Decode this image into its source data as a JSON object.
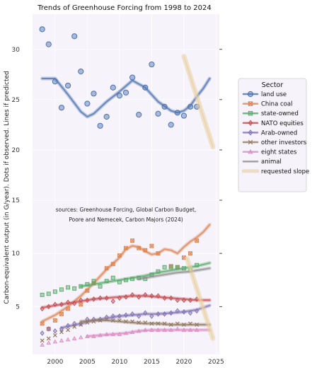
{
  "chart_data": {
    "type": "scatter",
    "title": "Trends of Greenhouse Forcing from 1998 to 2024",
    "ylabel": "Carbon-equivalent output (in G/year). Dots if observed. Lines if predicted",
    "annotation": [
      "sources: Greenhouse Forcing, Global Carbon Budget,",
      "Poore and Nemecek, Carbon Majors (2024)"
    ],
    "legend_title": "Sector",
    "legend_placement": "right",
    "xlim": [
      1996.5,
      2025.5
    ],
    "x_ticks": [
      2000,
      2005,
      2010,
      2015,
      2020,
      2025
    ],
    "top_panel": {
      "ylim": [
        15,
        33.5
      ],
      "y_ticks": [
        20,
        25,
        30
      ],
      "series": [
        {
          "name": "land use",
          "color": "#4c72b0",
          "marker": "circle",
          "x": [
            1998,
            1999,
            2000,
            2001,
            2002,
            2003,
            2004,
            2005,
            2006,
            2007,
            2008,
            2009,
            2010,
            2011,
            2012,
            2013,
            2014,
            2015,
            2016,
            2017,
            2018,
            2019,
            2020,
            2021,
            2022
          ],
          "y": [
            32.0,
            30.5,
            26.8,
            24.2,
            26.4,
            31.3,
            27.8,
            24.6,
            25.6,
            22.4,
            23.3,
            26.2,
            25.4,
            25.7,
            27.2,
            23.5,
            26.2,
            28.5,
            23.6,
            24.3,
            22.5,
            23.7,
            23.4,
            24.3,
            24.3
          ],
          "trend_x": [
            1998,
            2000,
            2002,
            2004,
            2005,
            2006,
            2008,
            2010,
            2012,
            2014,
            2016,
            2018,
            2019,
            2020,
            2021,
            2022,
            2023,
            2024
          ],
          "trend_y": [
            27.1,
            27.1,
            25.5,
            23.8,
            23.3,
            23.6,
            24.8,
            25.8,
            26.9,
            26.2,
            24.8,
            23.9,
            23.7,
            23.9,
            24.4,
            25.3,
            26.1,
            27.1
          ]
        },
        {
          "name": "requested slope",
          "color": "#e8cfa0",
          "trend_x": [
            2020,
            2024.5
          ],
          "trend_y": [
            29.3,
            20.3
          ]
        }
      ]
    },
    "bottom_panel": {
      "ylim": [
        0.5,
        15
      ],
      "y_ticks": [
        5,
        10,
        15
      ],
      "series": [
        {
          "name": "China coal",
          "color": "#dd8452",
          "marker": "square-x",
          "x": [
            1998,
            1999,
            2000,
            2001,
            2002,
            2004,
            2005,
            2006,
            2008,
            2009,
            2010,
            2011,
            2012,
            2013,
            2014,
            2015,
            2016,
            2018,
            2019,
            2020,
            2021,
            2022
          ],
          "y": [
            3.4,
            2.9,
            3.7,
            4.3,
            4.8,
            5.2,
            6.5,
            7.2,
            8.6,
            9.0,
            9.8,
            10.5,
            11.2,
            10.5,
            10.3,
            10.7,
            10.0,
            8.8,
            8.7,
            9.6,
            10.0,
            11.2
          ],
          "trend_x": [
            1998,
            2000,
            2002,
            2004,
            2006,
            2008,
            2010,
            2011,
            2012,
            2013,
            2014,
            2015,
            2016,
            2017,
            2018,
            2019,
            2020,
            2021,
            2022,
            2023,
            2024
          ],
          "trend_y": [
            3.6,
            4.2,
            5.0,
            6.0,
            7.2,
            8.5,
            9.6,
            10.4,
            10.7,
            10.6,
            10.2,
            9.9,
            10.0,
            10.4,
            10.3,
            10.0,
            10.6,
            11.1,
            11.5,
            12.0,
            12.7
          ]
        },
        {
          "name": "state-owned",
          "color": "#55a868",
          "marker": "square",
          "x": [
            1998,
            1999,
            2000,
            2001,
            2002,
            2003,
            2004,
            2005,
            2006,
            2007,
            2008,
            2009,
            2010,
            2011,
            2012,
            2013,
            2014,
            2015,
            2016,
            2017,
            2018,
            2019,
            2020,
            2021,
            2022
          ],
          "y": [
            6.1,
            6.2,
            6.4,
            6.6,
            6.8,
            6.7,
            6.9,
            7.1,
            7.4,
            6.9,
            7.4,
            7.7,
            7.3,
            7.5,
            7.6,
            7.7,
            7.6,
            8.0,
            8.3,
            8.7,
            8.7,
            8.7,
            8.6,
            8.4,
            8.9
          ],
          "trend_x": [
            2004,
            2006,
            2008,
            2010,
            2012,
            2014,
            2016,
            2018,
            2020,
            2022,
            2024
          ],
          "trend_y": [
            6.9,
            7.1,
            7.3,
            7.5,
            7.7,
            7.9,
            8.2,
            8.4,
            8.6,
            8.8,
            9.1
          ]
        },
        {
          "name": "NATO equities",
          "color": "#c44e52",
          "marker": "diamond",
          "x": [
            1998,
            1999,
            2000,
            2001,
            2002,
            2003,
            2004,
            2005,
            2006,
            2007,
            2008,
            2009,
            2010,
            2011,
            2012,
            2013,
            2014,
            2015,
            2016,
            2017,
            2018,
            2019,
            2020,
            2021,
            2022
          ],
          "y": [
            4.8,
            5.0,
            5.2,
            5.2,
            5.4,
            5.3,
            5.6,
            5.6,
            5.7,
            5.8,
            5.8,
            5.5,
            5.8,
            5.9,
            6.1,
            5.9,
            6.1,
            6.0,
            6.0,
            5.8,
            5.8,
            5.6,
            5.6,
            5.6,
            5.7
          ],
          "trend_x": [
            1998,
            2000,
            2002,
            2004,
            2006,
            2008,
            2010,
            2012,
            2014,
            2016,
            2018,
            2020,
            2022,
            2024
          ],
          "trend_y": [
            4.9,
            5.1,
            5.3,
            5.5,
            5.7,
            5.8,
            5.9,
            6.0,
            6.0,
            5.9,
            5.8,
            5.7,
            5.6,
            5.6
          ]
        },
        {
          "name": "Arab-owned",
          "color": "#8172b3",
          "marker": "diamond",
          "x": [
            1998,
            1999,
            2000,
            2001,
            2002,
            2003,
            2004,
            2005,
            2006,
            2007,
            2008,
            2009,
            2010,
            2011,
            2012,
            2013,
            2014,
            2015,
            2016,
            2017,
            2018,
            2019,
            2020,
            2021,
            2022
          ],
          "y": [
            2.5,
            2.9,
            2.7,
            2.9,
            3.2,
            3.4,
            3.4,
            3.8,
            3.8,
            3.8,
            4.0,
            4.1,
            4.1,
            4.2,
            4.3,
            4.1,
            4.4,
            4.1,
            4.3,
            4.3,
            4.4,
            4.6,
            4.5,
            4.4,
            4.6
          ],
          "trend_x": [
            2001,
            2004,
            2006,
            2008,
            2010,
            2012,
            2014,
            2016,
            2018,
            2020,
            2022,
            2024
          ],
          "trend_y": [
            3.0,
            3.4,
            3.7,
            3.9,
            4.1,
            4.2,
            4.3,
            4.3,
            4.4,
            4.5,
            4.7,
            5.1
          ]
        },
        {
          "name": "other investors",
          "color": "#937860",
          "marker": "x",
          "x": [
            1998,
            1999,
            2000,
            2001,
            2002,
            2003,
            2004,
            2005,
            2006,
            2007,
            2008,
            2009,
            2010,
            2011,
            2012,
            2013,
            2014,
            2015,
            2016,
            2017,
            2018,
            2019,
            2020,
            2021,
            2022
          ],
          "y": [
            1.8,
            2.0,
            2.3,
            2.6,
            2.8,
            3.1,
            3.3,
            3.5,
            3.6,
            3.7,
            3.8,
            3.7,
            3.7,
            3.6,
            3.6,
            3.5,
            3.5,
            3.4,
            3.4,
            3.4,
            3.3,
            3.4,
            3.3,
            3.4,
            3.3
          ],
          "trend_x": [
            2004,
            2006,
            2008,
            2010,
            2012,
            2014,
            2016,
            2018,
            2020,
            2022,
            2024
          ],
          "trend_y": [
            3.6,
            3.7,
            3.7,
            3.6,
            3.5,
            3.4,
            3.4,
            3.3,
            3.3,
            3.3,
            3.3
          ]
        },
        {
          "name": "eight states",
          "color": "#da8bc3",
          "marker": "triangle",
          "x": [
            1998,
            1999,
            2000,
            2001,
            2002,
            2003,
            2004,
            2005,
            2006,
            2007,
            2008,
            2009,
            2010,
            2011,
            2012,
            2013,
            2014,
            2015,
            2016,
            2017,
            2018,
            2019,
            2020,
            2021,
            2022
          ],
          "y": [
            1.4,
            1.6,
            1.7,
            1.8,
            1.9,
            2.0,
            2.1,
            2.2,
            2.2,
            2.3,
            2.4,
            2.4,
            2.4,
            2.5,
            2.6,
            2.7,
            2.8,
            2.8,
            2.8,
            2.8,
            2.8,
            2.9,
            2.8,
            2.8,
            2.8
          ],
          "trend_x": [
            2005,
            2007,
            2009,
            2011,
            2013,
            2015,
            2017,
            2019,
            2021,
            2024
          ],
          "trend_y": [
            2.2,
            2.3,
            2.4,
            2.5,
            2.7,
            2.8,
            2.8,
            2.8,
            2.8,
            2.8
          ]
        },
        {
          "name": "animal",
          "color": "#8c8c8c",
          "marker": "none",
          "trend_x": [
            2013,
            2016,
            2019,
            2021,
            2022,
            2024
          ],
          "trend_y": [
            7.6,
            7.9,
            8.2,
            8.3,
            8.4,
            8.6
          ]
        },
        {
          "name": "requested slope",
          "color": "#e8cfa0",
          "trend_x": [
            2020.5,
            2024.5
          ],
          "trend_y": [
            9.5,
            2.0
          ]
        }
      ]
    }
  }
}
